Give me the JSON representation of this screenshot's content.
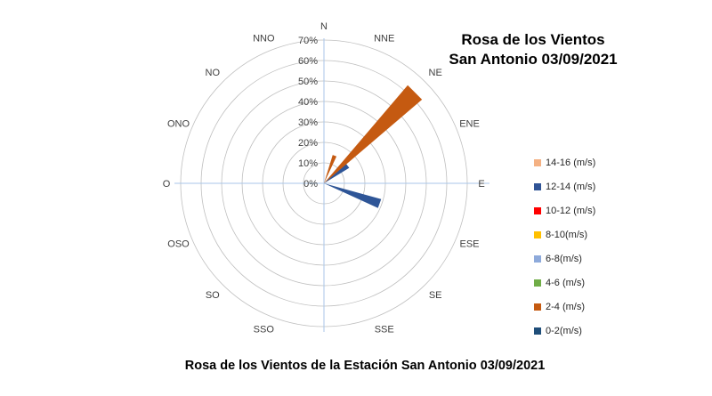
{
  "title": {
    "line1": "Rosa de los Vientos",
    "line2": "San Antonio 03/09/2021"
  },
  "caption": "Rosa de los Vientos de la Estación San Antonio 03/09/2021",
  "legend": {
    "items": [
      {
        "label": "14-16 (m/s)",
        "color": "#F4B183"
      },
      {
        "label": "12-14 (m/s)",
        "color": "#305496"
      },
      {
        "label": "10-12 (m/s)",
        "color": "#FF0000"
      },
      {
        "label": "8-10(m/s)",
        "color": "#FFC000"
      },
      {
        "label": "6-8(m/s)",
        "color": "#8EAADB"
      },
      {
        "label": "4-6 (m/s)",
        "color": "#70AD47"
      },
      {
        "label": "2-4 (m/s)",
        "color": "#C55A11"
      },
      {
        "label": "0-2(m/s)",
        "color": "#1F4E79"
      }
    ]
  },
  "chart_data": {
    "type": "wind-rose",
    "title": "Rosa de los Vientos San Antonio 03/09/2021",
    "radial_axis": {
      "unit": "%",
      "min": 0,
      "max": 70,
      "tick_labels": [
        "0%",
        "10%",
        "20%",
        "30%",
        "40%",
        "50%",
        "60%",
        "70%"
      ]
    },
    "direction_labels": [
      {
        "label": "N",
        "bearing_deg": 0
      },
      {
        "label": "NNE",
        "bearing_deg": 22.5
      },
      {
        "label": "NE",
        "bearing_deg": 45
      },
      {
        "label": "ENE",
        "bearing_deg": 67.5
      },
      {
        "label": "E",
        "bearing_deg": 90
      },
      {
        "label": "ESE",
        "bearing_deg": 112.5
      },
      {
        "label": "SE",
        "bearing_deg": 135
      },
      {
        "label": "SSE",
        "bearing_deg": 157.5
      },
      {
        "label": "SSO",
        "bearing_deg": 202.5
      },
      {
        "label": "SO",
        "bearing_deg": 225
      },
      {
        "label": "OSO",
        "bearing_deg": 247.5
      },
      {
        "label": "O",
        "bearing_deg": 270
      },
      {
        "label": "ONO",
        "bearing_deg": 292.5
      },
      {
        "label": "NO",
        "bearing_deg": 315
      },
      {
        "label": "NNO",
        "bearing_deg": 337.5
      }
    ],
    "series": [
      {
        "name": "0-2(m/s)",
        "color": "#2E5597",
        "points": [
          {
            "direction": "NE",
            "frequency_pct": 14.5,
            "bearing_deg": 52,
            "half_angle_deg": 6.5
          },
          {
            "direction": "ESE",
            "frequency_pct": 29,
            "bearing_deg": 110,
            "half_angle_deg": 4.5
          }
        ]
      },
      {
        "name": "2-4 (m/s)",
        "color": "#C55A11",
        "points": [
          {
            "direction": "NNE",
            "frequency_pct": 14.5,
            "bearing_deg": 21,
            "half_angle_deg": 4
          },
          {
            "direction": "NE",
            "frequency_pct": 63,
            "bearing_deg": 45,
            "half_angle_deg": 4.5
          }
        ]
      }
    ],
    "grid": {
      "circle_count": 7,
      "circle_color": "#BFBFBF",
      "axis_color": "#A8C6E8",
      "label_color": "#404040"
    }
  }
}
